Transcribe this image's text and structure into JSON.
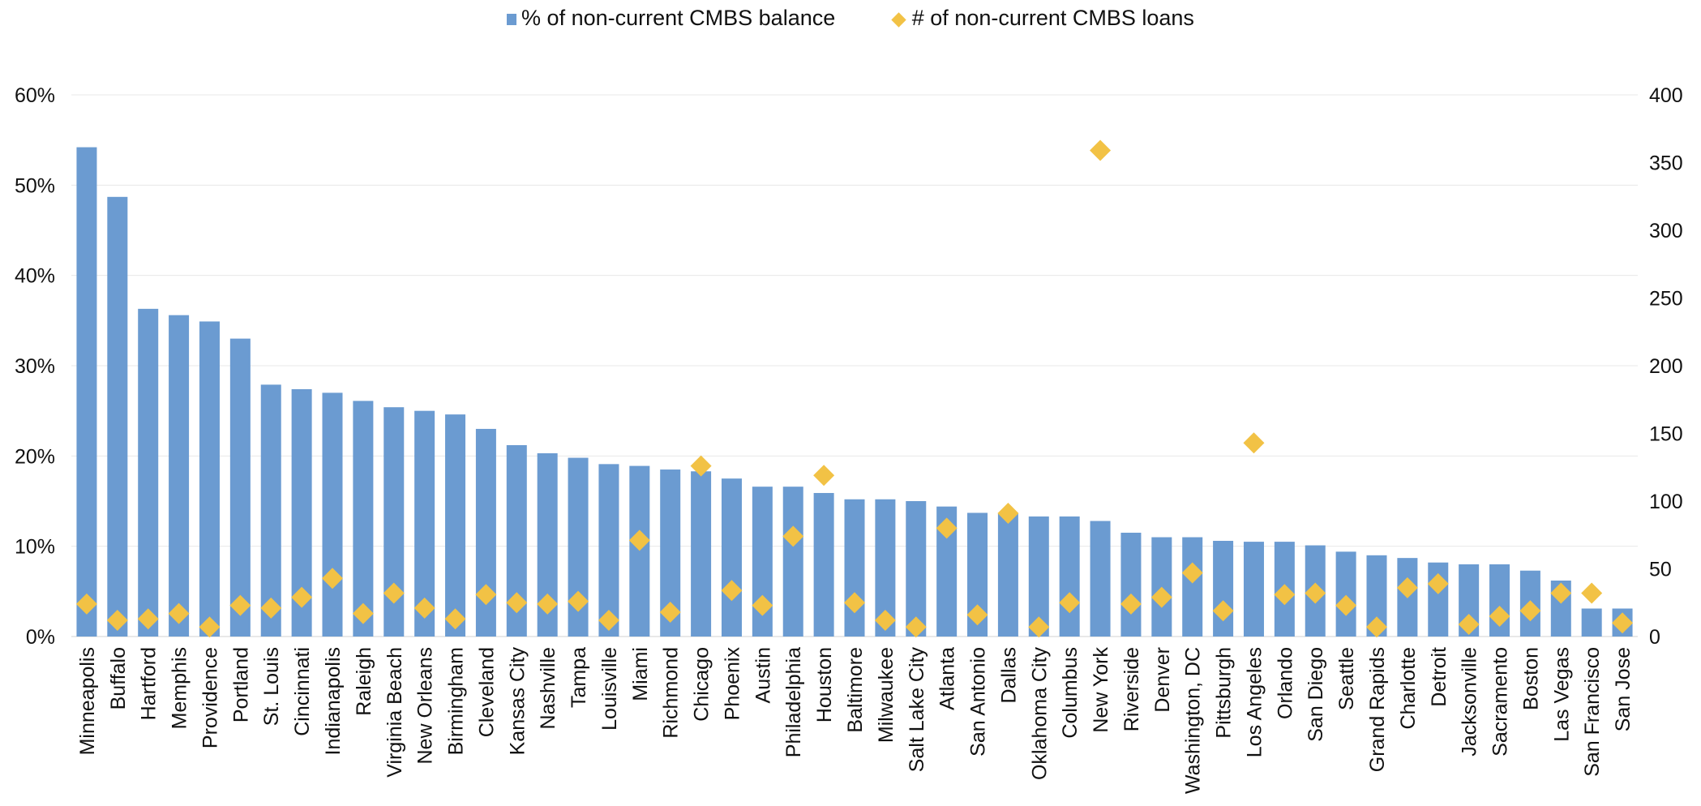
{
  "chart_data": {
    "type": "bar",
    "categories": [
      "Minneapolis",
      "Buffalo",
      "Hartford",
      "Memphis",
      "Providence",
      "Portland",
      "St. Louis",
      "Cincinnati",
      "Indianapolis",
      "Raleigh",
      "Virginia Beach",
      "New Orleans",
      "Birmingham",
      "Cleveland",
      "Kansas City",
      "Nashville",
      "Tampa",
      "Louisville",
      "Miami",
      "Richmond",
      "Chicago",
      "Phoenix",
      "Austin",
      "Philadelphia",
      "Houston",
      "Baltimore",
      "Milwaukee",
      "Salt Lake City",
      "Atlanta",
      "San Antonio",
      "Dallas",
      "Oklahoma City",
      "Columbus",
      "New York",
      "Riverside",
      "Denver",
      "Washington, DC",
      "Pittsburgh",
      "Los Angeles",
      "Orlando",
      "San Diego",
      "Seattle",
      "Grand Rapids",
      "Charlotte",
      "Detroit",
      "Jacksonville",
      "Sacramento",
      "Boston",
      "Las Vegas",
      "San Francisco",
      "San Jose"
    ],
    "series": [
      {
        "name": "% of non-current CMBS balance",
        "type": "bar",
        "axis": "left",
        "color": "#6b9bd1",
        "values": [
          54.2,
          48.7,
          36.3,
          35.6,
          34.9,
          33.0,
          27.9,
          27.4,
          27.0,
          26.1,
          25.4,
          25.0,
          24.6,
          23.0,
          21.2,
          20.3,
          19.8,
          19.1,
          18.9,
          18.5,
          18.3,
          17.5,
          16.6,
          16.6,
          15.9,
          15.2,
          15.2,
          15.0,
          14.4,
          13.7,
          13.6,
          13.3,
          13.3,
          12.8,
          11.5,
          11.0,
          11.0,
          10.6,
          10.5,
          10.5,
          10.1,
          9.4,
          9.0,
          8.7,
          8.2,
          8.0,
          8.0,
          7.3,
          6.2,
          3.1,
          3.1
        ]
      },
      {
        "name": "# of non-current CMBS loans",
        "type": "scatter",
        "marker": "diamond",
        "axis": "right",
        "color": "#f2c245",
        "values": [
          24,
          12,
          13,
          17,
          7,
          23,
          21,
          29,
          43,
          17,
          32,
          21,
          13,
          31,
          25,
          24,
          26,
          12,
          71,
          18,
          126,
          34,
          23,
          74,
          119,
          25,
          12,
          7,
          80,
          16,
          91,
          7,
          25,
          359,
          24,
          29,
          47,
          19,
          143,
          31,
          32,
          23,
          7,
          36,
          39,
          9,
          15,
          19,
          32,
          32,
          10
        ]
      }
    ],
    "y_left": {
      "ticks": [
        "0%",
        "10%",
        "20%",
        "30%",
        "40%",
        "50%",
        "60%"
      ],
      "ylim": [
        0,
        60
      ]
    },
    "y_right": {
      "ticks": [
        "0",
        "50",
        "100",
        "150",
        "200",
        "250",
        "300",
        "350",
        "400"
      ],
      "ylim": [
        0,
        400
      ]
    },
    "grid": true,
    "legend_position": "top-center"
  }
}
